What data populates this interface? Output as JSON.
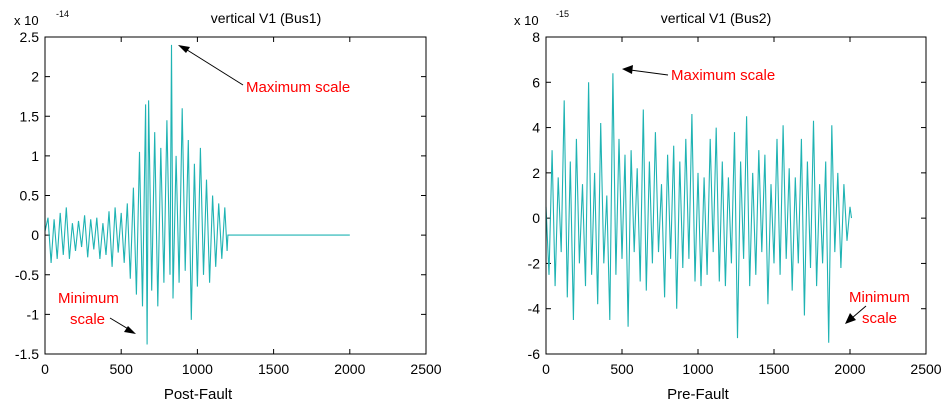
{
  "colors": {
    "series": "#1fb3b3",
    "annotation": "#ff0000",
    "axis": "#000000",
    "background": "#ffffff"
  },
  "chart_data": [
    {
      "type": "line",
      "title": "vertical V1 (Bus1)",
      "xlabel": "Post-Fault",
      "ylabel": "",
      "y_multiplier": "x 10",
      "y_multiplier_exponent": "-14",
      "xlim": [
        0,
        2500
      ],
      "ylim": [
        -1.5,
        2.5
      ],
      "xticks": [
        0,
        500,
        1000,
        1500,
        2000,
        2500
      ],
      "yticks": [
        -1.5,
        -1,
        -0.5,
        0,
        0.5,
        1,
        1.5,
        2,
        2.5
      ],
      "xtick_labels": [
        "0",
        "500",
        "1000",
        "1500",
        "2000",
        "2500"
      ],
      "ytick_labels": [
        "-1.5",
        "-1",
        "-0.5",
        "0",
        "0.5",
        "1",
        "1.5",
        "2",
        "2.5"
      ],
      "grid": false,
      "series": [
        {
          "x": [
            0,
            20,
            40,
            60,
            80,
            100,
            120,
            140,
            160,
            180,
            200,
            220,
            240,
            260,
            280,
            300,
            320,
            340,
            360,
            380,
            400,
            420,
            440,
            460,
            480,
            500,
            520,
            540,
            560,
            580,
            600,
            620,
            640,
            660,
            670,
            680,
            700,
            720,
            740,
            760,
            780,
            800,
            820,
            830,
            840,
            860,
            880,
            900,
            920,
            940,
            960,
            980,
            1000,
            1020,
            1040,
            1060,
            1080,
            1100,
            1120,
            1140,
            1160,
            1180,
            1195,
            1200,
            2000
          ],
          "y": [
            0.05,
            0.22,
            -0.35,
            0.2,
            -0.3,
            0.28,
            -0.25,
            0.35,
            -0.3,
            0.15,
            -0.2,
            0.18,
            -0.15,
            0.25,
            -0.28,
            0.2,
            -0.18,
            0.22,
            -0.3,
            0.15,
            -0.25,
            0.3,
            -0.4,
            0.35,
            -0.22,
            0.28,
            -0.35,
            0.4,
            -0.55,
            0.6,
            -0.75,
            1.05,
            -0.9,
            1.65,
            -1.38,
            1.7,
            -0.7,
            1.3,
            -0.9,
            1.1,
            -0.6,
            1.45,
            -0.5,
            2.4,
            -0.8,
            1.0,
            -0.6,
            1.6,
            -0.45,
            1.2,
            -1.07,
            0.9,
            -0.65,
            1.1,
            -0.5,
            0.7,
            -0.6,
            0.5,
            -0.4,
            0.4,
            -0.3,
            0.35,
            -0.2,
            0.0,
            0.0
          ]
        }
      ],
      "annotations": [
        {
          "text": "Maximum scale",
          "x": 830,
          "y": 2.4
        },
        {
          "text": "Minimum",
          "x": 670,
          "y": -1.38
        },
        {
          "text": "scale",
          "x": 670,
          "y": -1.38
        }
      ]
    },
    {
      "type": "line",
      "title": "vertical V1 (Bus2)",
      "xlabel": "Pre-Fault",
      "ylabel": "",
      "y_multiplier": "x 10",
      "y_multiplier_exponent": "-15",
      "xlim": [
        0,
        2500
      ],
      "ylim": [
        -6,
        8
      ],
      "xticks": [
        0,
        500,
        1000,
        1500,
        2000,
        2500
      ],
      "yticks": [
        -6,
        -4,
        -2,
        0,
        2,
        4,
        6,
        8
      ],
      "xtick_labels": [
        "0",
        "500",
        "1000",
        "1500",
        "2000",
        "2500"
      ],
      "ytick_labels": [
        "-6",
        "-4",
        "-2",
        "0",
        "2",
        "4",
        "6",
        "8"
      ],
      "grid": false,
      "series": [
        {
          "x": [
            0,
            20,
            40,
            60,
            80,
            100,
            120,
            140,
            160,
            180,
            200,
            220,
            240,
            260,
            280,
            300,
            320,
            340,
            360,
            380,
            400,
            420,
            440,
            460,
            480,
            500,
            520,
            540,
            560,
            580,
            600,
            620,
            640,
            660,
            680,
            700,
            720,
            740,
            760,
            780,
            800,
            820,
            840,
            860,
            880,
            900,
            920,
            940,
            960,
            980,
            1000,
            1020,
            1040,
            1060,
            1080,
            1100,
            1120,
            1140,
            1160,
            1180,
            1200,
            1220,
            1240,
            1260,
            1280,
            1300,
            1320,
            1340,
            1360,
            1380,
            1400,
            1420,
            1440,
            1460,
            1480,
            1500,
            1520,
            1540,
            1560,
            1580,
            1600,
            1620,
            1640,
            1660,
            1680,
            1700,
            1720,
            1740,
            1760,
            1780,
            1800,
            1820,
            1840,
            1860,
            1880,
            1900,
            1920,
            1940,
            1960,
            1980,
            2000,
            2010
          ],
          "y": [
            0.5,
            -2.5,
            3.0,
            -3.0,
            1.8,
            -1.5,
            5.2,
            -3.5,
            2.5,
            -4.5,
            3.5,
            -2.0,
            1.5,
            -3.0,
            6.0,
            -2.5,
            2.0,
            -3.8,
            4.2,
            -2.0,
            1.0,
            -4.5,
            6.4,
            -2.5,
            3.5,
            -1.8,
            2.8,
            -4.8,
            3.0,
            -1.5,
            2.2,
            -2.8,
            4.8,
            -3.2,
            2.5,
            -2.0,
            3.8,
            -1.5,
            1.5,
            -3.5,
            2.8,
            -1.8,
            3.2,
            -4.0,
            2.5,
            -2.2,
            3.5,
            -1.8,
            4.6,
            -2.8,
            2.0,
            -3.0,
            1.8,
            -2.5,
            3.5,
            -1.5,
            4.0,
            -2.8,
            2.5,
            -3.0,
            1.8,
            -2.0,
            3.8,
            -5.3,
            2.5,
            -1.8,
            4.5,
            -3.0,
            2.0,
            -2.5,
            3.0,
            -1.5,
            2.8,
            -3.8,
            1.5,
            -2.0,
            3.5,
            -2.5,
            4.1,
            -1.8,
            2.2,
            -3.2,
            1.8,
            -2.0,
            3.5,
            -4.3,
            2.5,
            -2.2,
            4.3,
            -3.0,
            1.5,
            -2.0,
            2.5,
            -5.5,
            4.1,
            -1.5,
            2.0,
            -2.2,
            1.5,
            -1.0,
            0.5,
            0.0
          ]
        }
      ],
      "annotations": [
        {
          "text": "Maximum scale",
          "x": 440,
          "y": 6.4
        },
        {
          "text": "Minimum",
          "x": 1860,
          "y": -5.5
        },
        {
          "text": "scale",
          "x": 1860,
          "y": -5.5
        }
      ]
    }
  ]
}
